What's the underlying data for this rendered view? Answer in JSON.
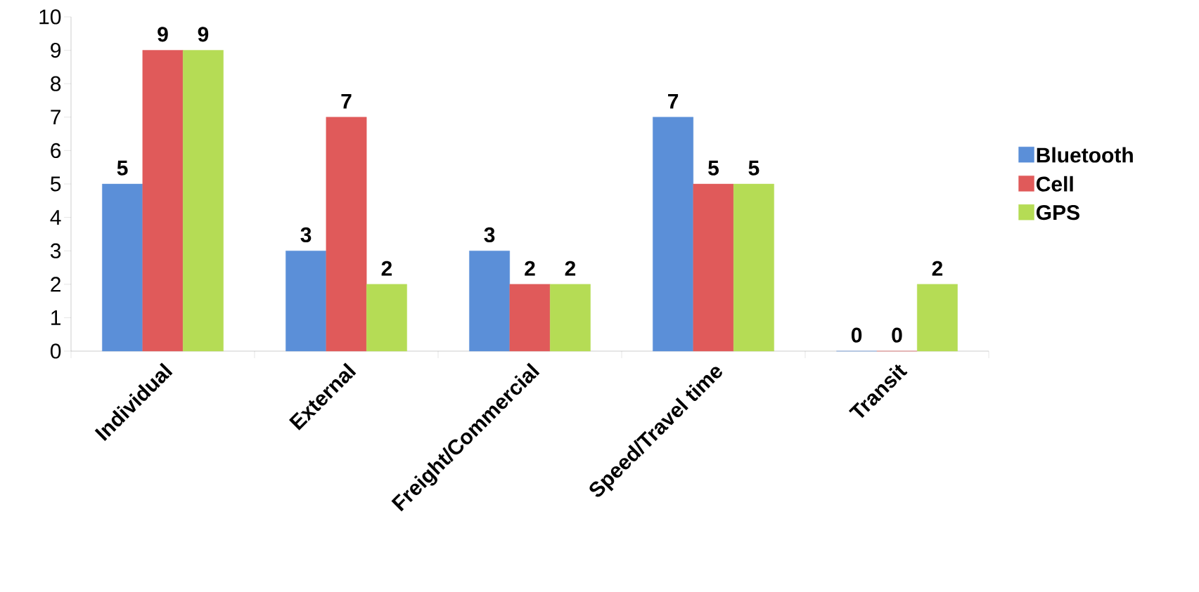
{
  "chart_data": {
    "type": "bar",
    "categories": [
      "Individual",
      "External",
      "Freight/Commercial",
      "Speed/Travel time",
      "Transit"
    ],
    "series": [
      {
        "name": "Bluetooth",
        "color": "#5b8fd8",
        "values": [
          5,
          3,
          3,
          7,
          0
        ]
      },
      {
        "name": "Cell",
        "color": "#e05a5a",
        "values": [
          9,
          7,
          2,
          5,
          0
        ]
      },
      {
        "name": "GPS",
        "color": "#b5dc55",
        "values": [
          9,
          2,
          2,
          5,
          2
        ]
      }
    ],
    "ylim": [
      0,
      10
    ],
    "yticks": [
      0,
      1,
      2,
      3,
      4,
      5,
      6,
      7,
      8,
      9,
      10
    ],
    "data_labels": true,
    "legend": "right",
    "grid": false
  }
}
